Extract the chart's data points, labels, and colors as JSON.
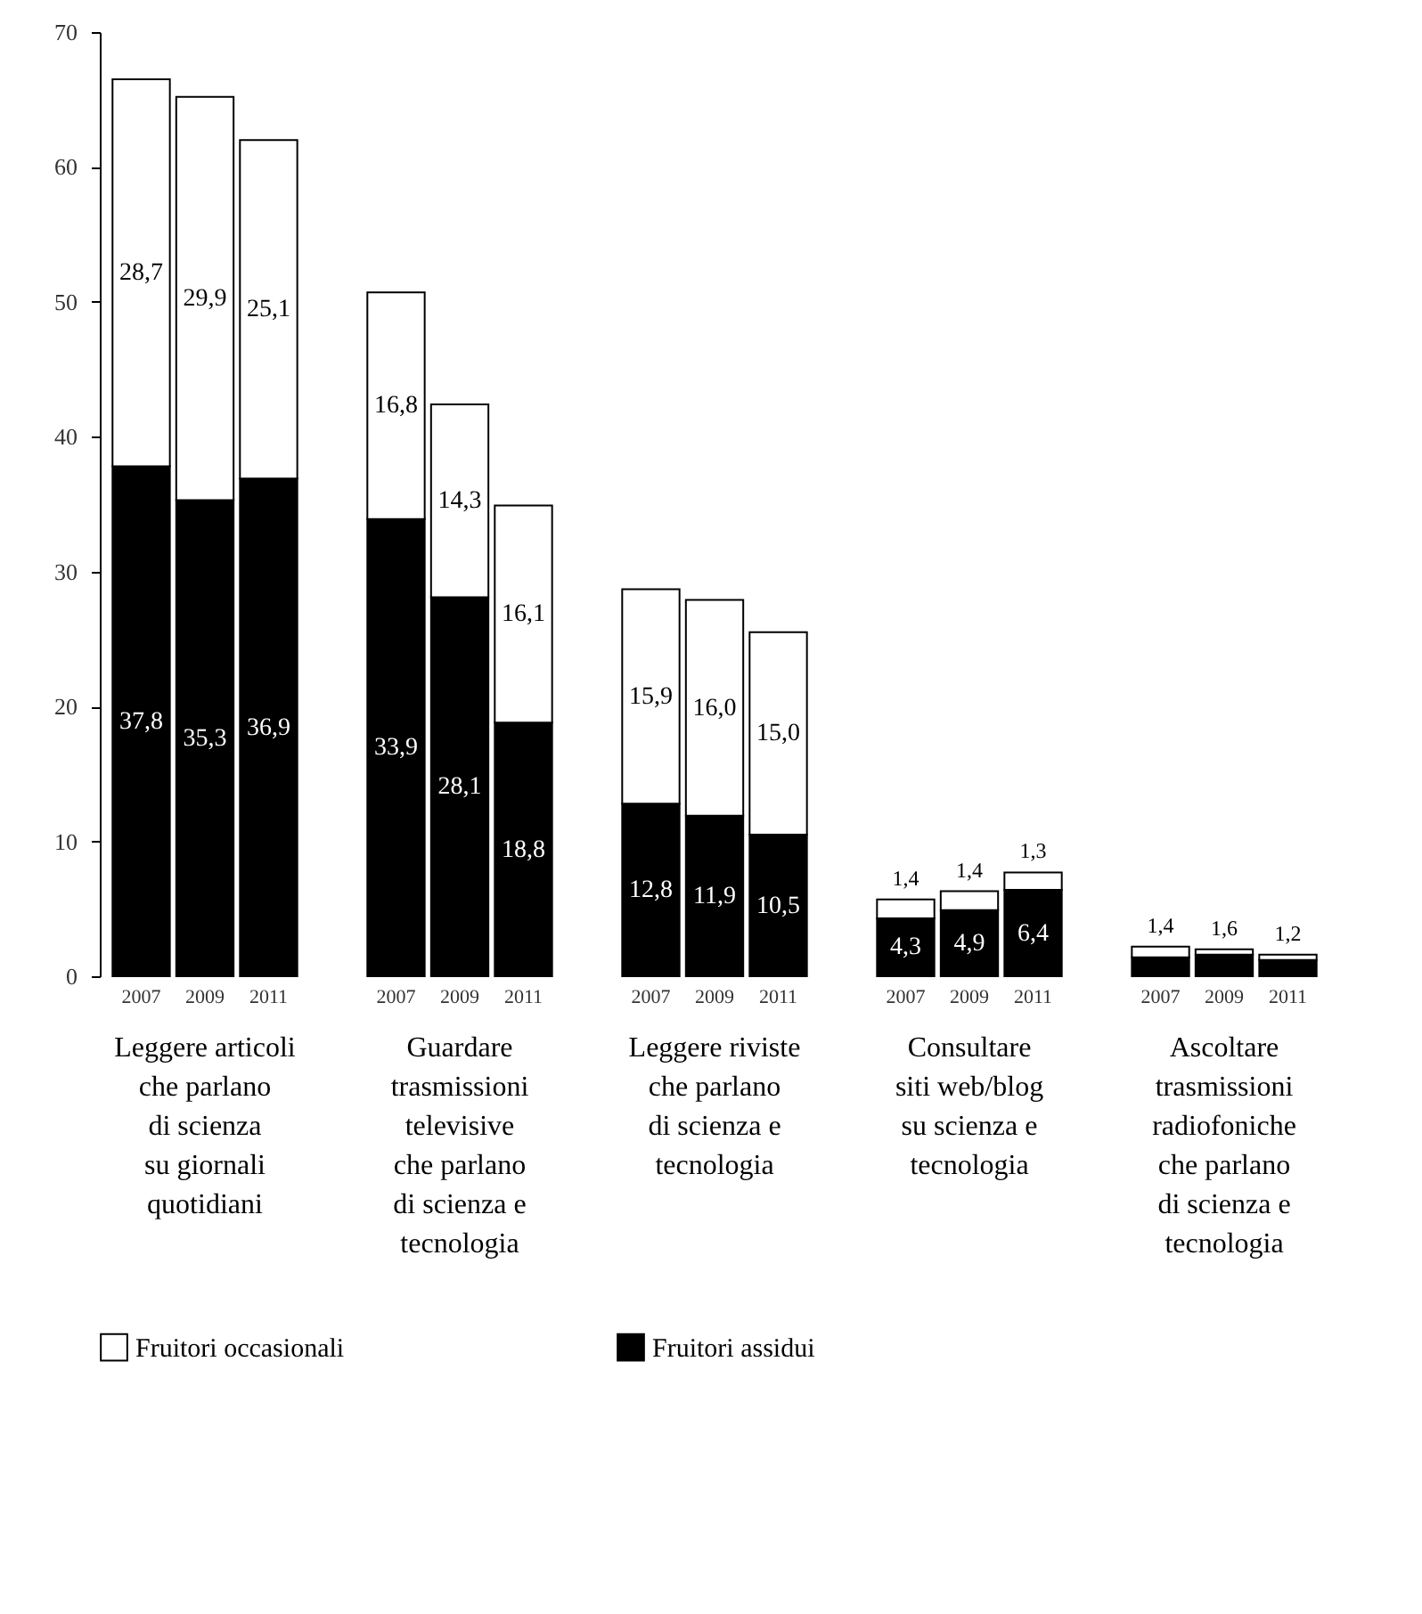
{
  "chart_data": {
    "type": "bar",
    "stacked": true,
    "categories": [
      "2007",
      "2009",
      "2011",
      "2007",
      "2009",
      "2011",
      "2007",
      "2009",
      "2011",
      "2007",
      "2009",
      "2011",
      "2007",
      "2009",
      "2011"
    ],
    "series": [
      {
        "name": "Fruitori assidui",
        "color": "#000000",
        "values": [
          37.8,
          35.3,
          36.9,
          33.9,
          28.1,
          18.8,
          12.8,
          11.9,
          10.5,
          4.3,
          4.9,
          6.4,
          1.4,
          1.6,
          1.2
        ],
        "value_labels": [
          "37,8",
          "35,3",
          "36,9",
          "33,9",
          "28,1",
          "18,8",
          "12,8",
          "11,9",
          "10,5",
          "4,3",
          "4,9",
          "6,4",
          "1,4",
          "1,6",
          "1,2"
        ]
      },
      {
        "name": "Fruitori occasionali",
        "color": "#ffffff",
        "values": [
          28.7,
          29.9,
          25.1,
          16.8,
          14.3,
          16.1,
          15.9,
          16.0,
          15.0,
          1.4,
          1.4,
          1.3,
          0.8,
          0.4,
          0.4
        ],
        "value_labels": [
          "28,7",
          "29,9",
          "25,1",
          "16,8",
          "14,3",
          "16,1",
          "15,9",
          "16,0",
          "15,0",
          "1,4",
          "1,4",
          "1,3",
          null,
          null,
          null
        ]
      }
    ],
    "annotations": [
      "Leggere articoli\nche parlano\ndi scienza\nsu giornali\nquotidiani",
      "Guardare\ntrasmissioni\ntelevisive\nche parlano\ndi scienza e\ntecnologia",
      "Leggere riviste\nche parlano\ndi scienza e\ntecnologia",
      "Consultare\nsiti web/blog\nsu scienza e\ntecnologia",
      "Ascoltare\ntrasmissioni\nradiofoniche\nche parlano\ndi scienza e\ntecnologia"
    ],
    "ylim": [
      0,
      70
    ],
    "yticks": [
      0,
      10,
      20,
      30,
      40,
      50,
      60,
      70
    ],
    "grid": false,
    "legend": "bottom"
  }
}
